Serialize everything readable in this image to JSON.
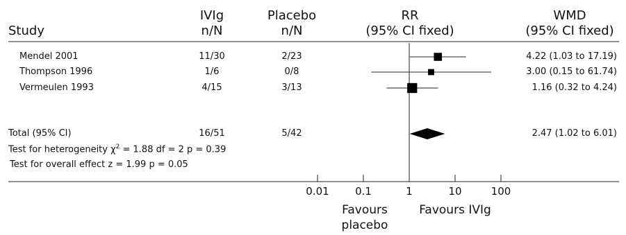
{
  "headers": {
    "study": "Study",
    "ivig_line1": "IVIg",
    "ivig_line2": "n/N",
    "placebo_line1": "Placebo",
    "placebo_line2": "n/N",
    "rr_line1": "RR",
    "rr_line2": "(95% CI fixed)",
    "wmd_line1": "WMD",
    "wmd_line2": "(95% CI fixed)"
  },
  "studies": [
    {
      "name": "Mendel 2001",
      "ivig": "11/30",
      "placebo": "2/23",
      "estimate_text": "4.22 (1.03 to 17.19)"
    },
    {
      "name": "Thompson 1996",
      "ivig": "1/6",
      "placebo": "0/8",
      "estimate_text": "3.00 (0.15 to 61.74)"
    },
    {
      "name": "Vermeulen 1993",
      "ivig": "4/15",
      "placebo": "3/13",
      "estimate_text": "1.16 (0.32 to 4.24)"
    }
  ],
  "total": {
    "label": "Total (95% CI)",
    "ivig": "16/51",
    "placebo": "5/42",
    "estimate_text": "2.47 (1.02 to 6.01)"
  },
  "heterogeneity": {
    "prefix": "Test for heterogeneity χ",
    "sup": "2",
    "suffix": " = 1.88  df = 2 p = 0.39"
  },
  "overall_effect": "Test for overall effect z = 1.99  p = 0.05",
  "favours_left": [
    "Favours",
    "placebo"
  ],
  "favours_right": "Favours IVIg",
  "chart_data": {
    "type": "forest",
    "x_scale": "log",
    "x_ticks": [
      0.01,
      0.1,
      1,
      10,
      100
    ],
    "x_tick_labels": [
      "0.01",
      "0.1",
      "1",
      "10",
      "100"
    ],
    "reference_line": 1,
    "studies": [
      {
        "name": "Mendel 2001",
        "estimate": 4.22,
        "ci_low": 1.03,
        "ci_high": 17.19,
        "weight": 0.3
      },
      {
        "name": "Thompson 1996",
        "estimate": 3.0,
        "ci_low": 0.15,
        "ci_high": 61.74,
        "weight": 0.1
      },
      {
        "name": "Vermeulen 1993",
        "estimate": 1.16,
        "ci_low": 0.32,
        "ci_high": 4.24,
        "weight": 0.6
      }
    ],
    "pooled": {
      "estimate": 2.47,
      "ci_low": 1.02,
      "ci_high": 6.01
    }
  }
}
